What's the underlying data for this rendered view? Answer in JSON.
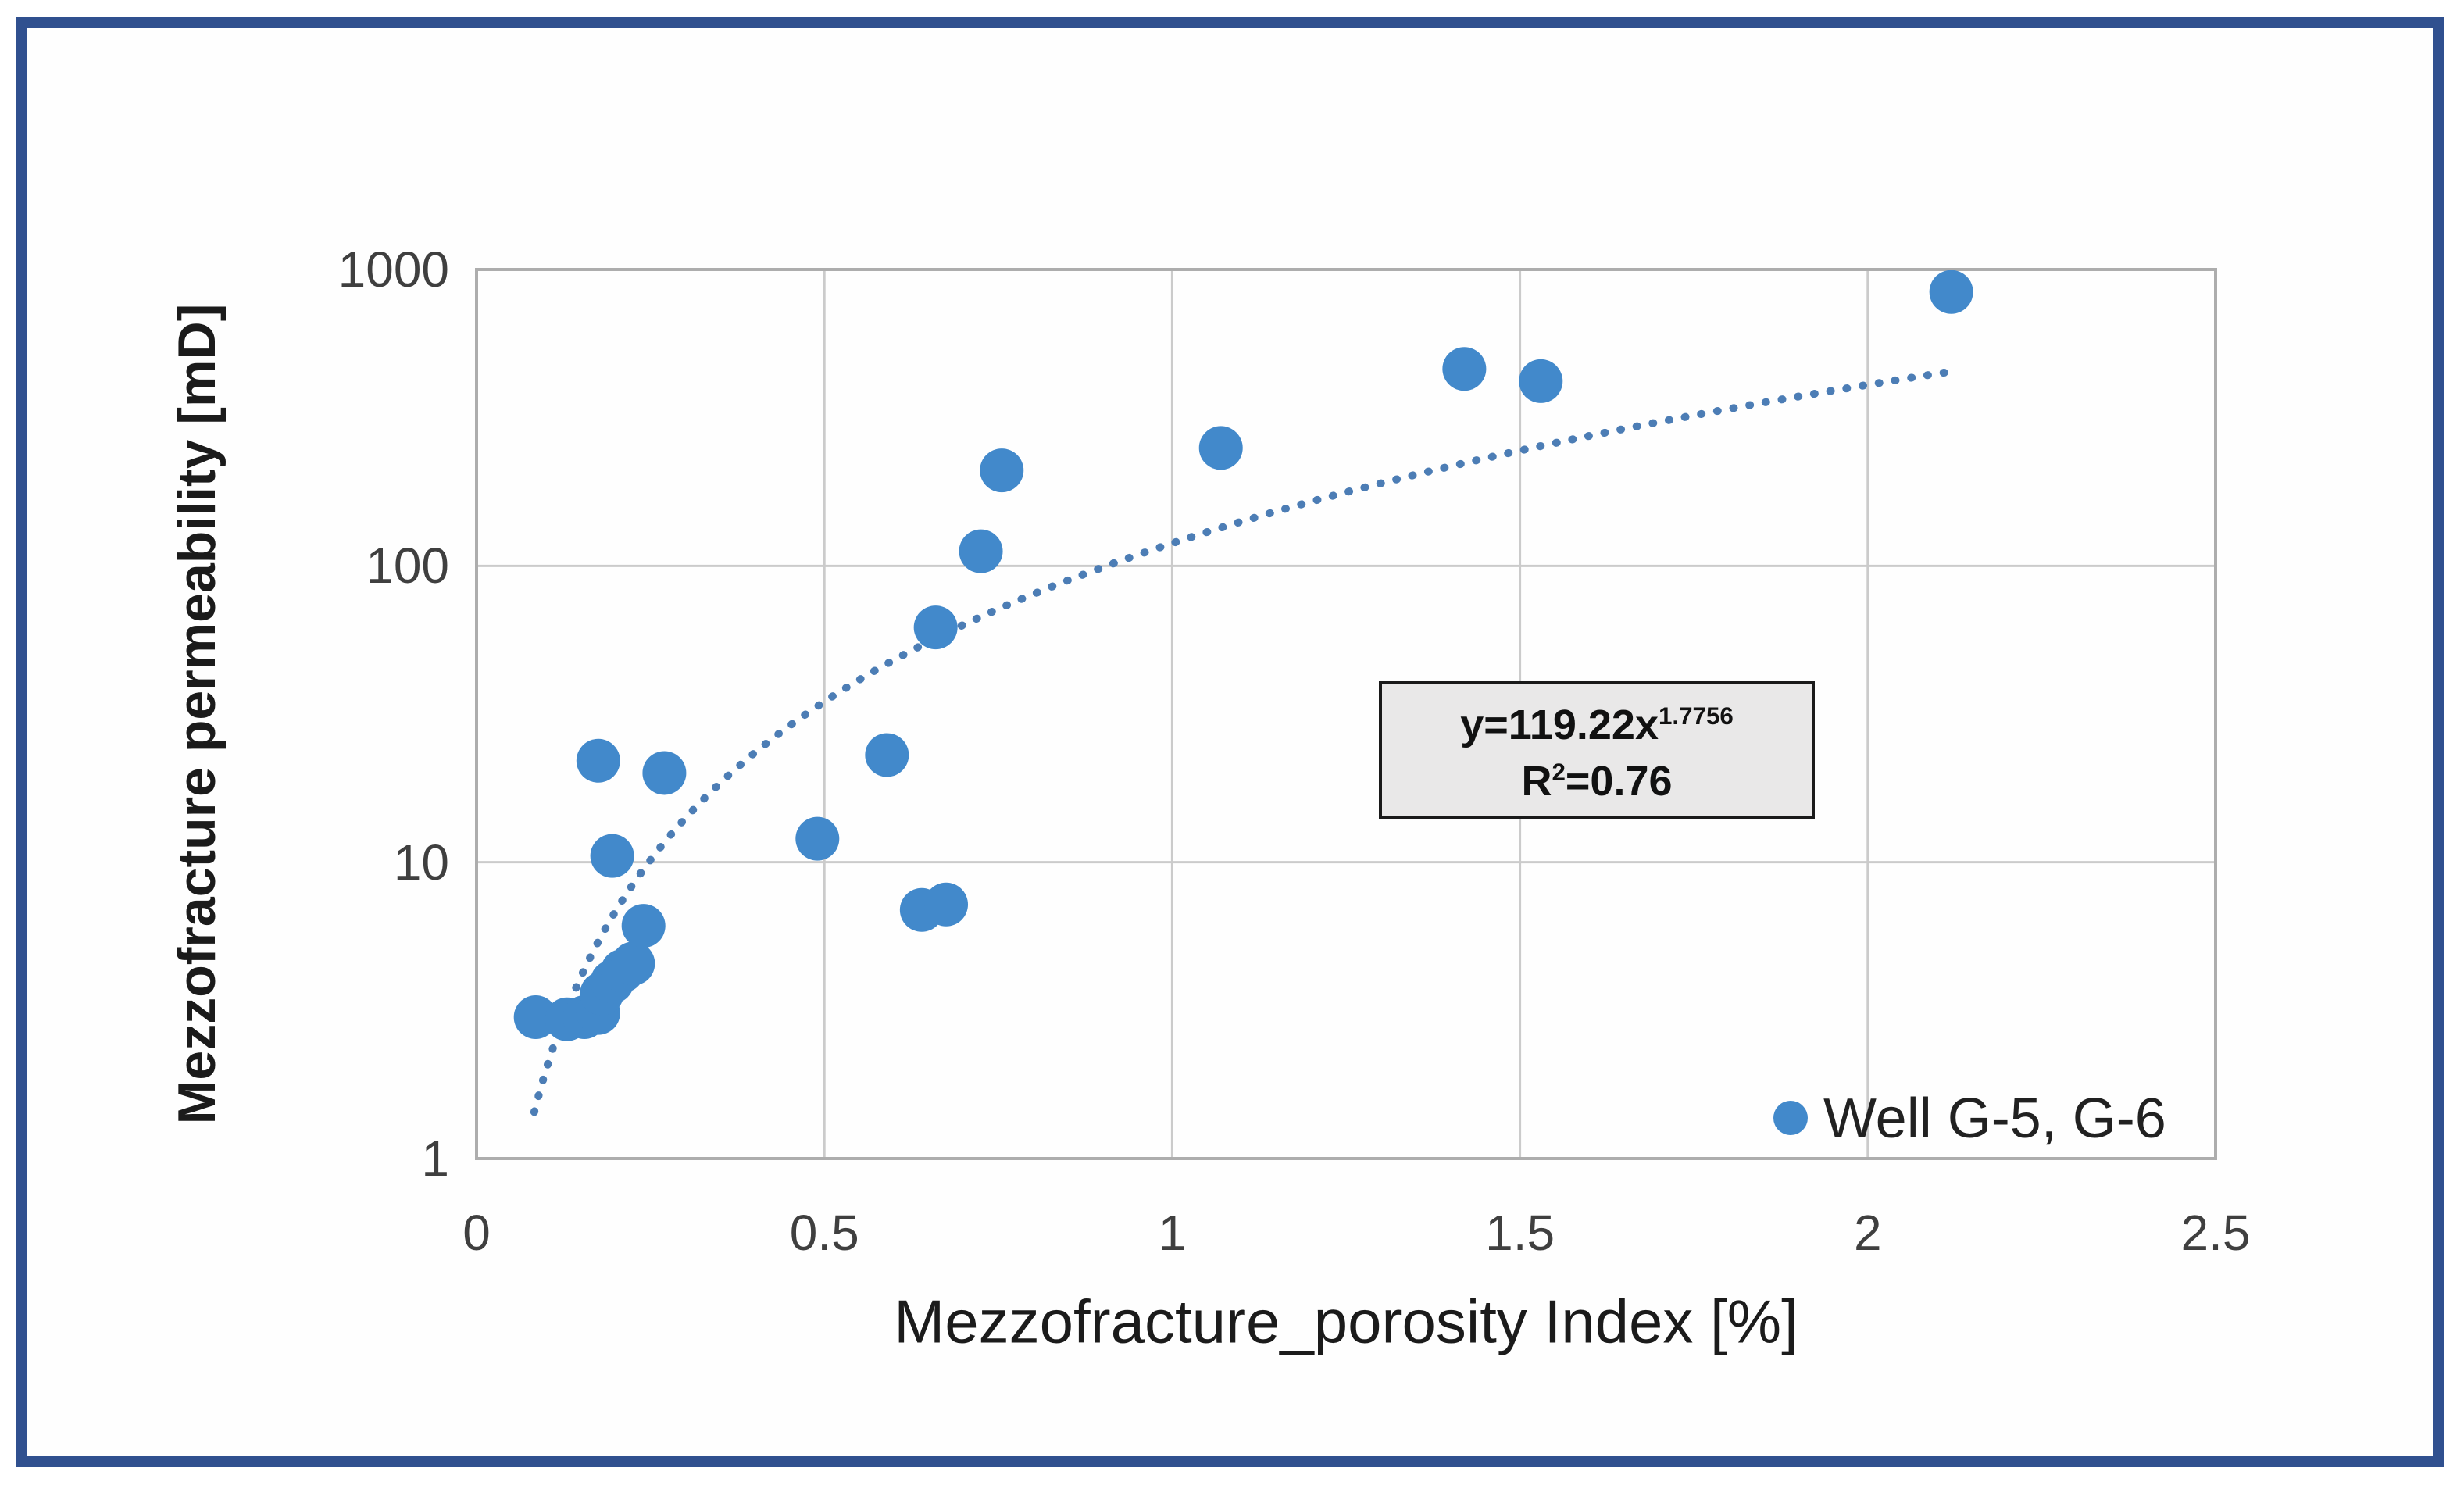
{
  "chart_data": {
    "type": "scatter",
    "title": "",
    "xlabel": "Mezzofracture_porosity Index [%]",
    "ylabel": "Mezzofracture permeability [mD]",
    "x_axis": {
      "min": 0,
      "max": 2.5,
      "scale": "linear",
      "ticks": [
        {
          "value": 0,
          "label": "0"
        },
        {
          "value": 0.5,
          "label": "0.5"
        },
        {
          "value": 1,
          "label": "1"
        },
        {
          "value": 1.5,
          "label": "1.5"
        },
        {
          "value": 2,
          "label": "2"
        },
        {
          "value": 2.5,
          "label": "2.5"
        }
      ]
    },
    "y_axis": {
      "min": 1,
      "max": 1000,
      "scale": "log10",
      "ticks": [
        {
          "value": 1,
          "label": "1"
        },
        {
          "value": 10,
          "label": "10"
        },
        {
          "value": 100,
          "label": "100"
        },
        {
          "value": 1000,
          "label": "1000"
        }
      ]
    },
    "grid": true,
    "legend": {
      "label": "Well G-5, G-6",
      "position": "inside-bottom-right"
    },
    "series": [
      {
        "name": "Well G-5, G-6",
        "marker": "circle",
        "color": "#4289CB",
        "points": [
          [
            0.085,
            3.0
          ],
          [
            0.13,
            2.95
          ],
          [
            0.155,
            3.0
          ],
          [
            0.175,
            3.1
          ],
          [
            0.18,
            3.6
          ],
          [
            0.195,
            3.95
          ],
          [
            0.21,
            4.3
          ],
          [
            0.225,
            4.55
          ],
          [
            0.24,
            6.1
          ],
          [
            0.195,
            10.5
          ],
          [
            0.175,
            22
          ],
          [
            0.27,
            20
          ],
          [
            0.49,
            12
          ],
          [
            0.59,
            23
          ],
          [
            0.64,
            6.9
          ],
          [
            0.675,
            7.2
          ],
          [
            0.66,
            62
          ],
          [
            0.725,
            112
          ],
          [
            0.755,
            210
          ],
          [
            1.07,
            250
          ],
          [
            1.42,
            462
          ],
          [
            1.53,
            420
          ],
          [
            2.12,
            840
          ]
        ]
      }
    ],
    "trendline": {
      "type": "power",
      "equation_text": "y=119.22x^1.7756",
      "r2_text": "R²=0.76",
      "coefficient": 119.22,
      "exponent": 1.7756,
      "x_start": 0.083,
      "x_end": 2.12,
      "style": "dotted",
      "color": "#4C7DB5"
    },
    "annotation": {
      "line1_base": "y=119.22x",
      "line1_exponent": "1.7756",
      "line2_base": "R",
      "line2_exponent": "2",
      "line2_rest": "=0.76"
    },
    "colors": {
      "marker": "#4289CB",
      "trendline": "#4C7DB5",
      "gridline": "#CBCBCB",
      "frame": "#ADADAD",
      "outer_border": "#30508F",
      "annotation_fill": "#E9E8E8",
      "annotation_border": "#1A1A1A"
    }
  }
}
